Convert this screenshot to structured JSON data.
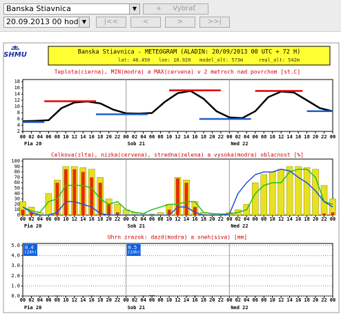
{
  "controls": {
    "location": "Banska Stiavnica",
    "select_button": "Vybrať",
    "datetime": "20.09.2013 00 hod",
    "nav": [
      "|<<",
      "<",
      ">",
      ">>|"
    ]
  },
  "header": {
    "logo": "SHMU",
    "title": "Banska Stiavnica - METEOGRAM (ALADIN: 20/09/2013 00 UTC + 72 H)",
    "lat": "lat: 48.450",
    "lon": "lon: 18.920",
    "model_alt": "model_alt: 573m",
    "real_alt": "real_alt: 542m"
  },
  "chart_data": [
    {
      "type": "line",
      "title": "Teplota(cierna), MIN(modra) a MAX(cervena) v 2 metroch nad povrchom [st.C]",
      "xlim": [
        0,
        72
      ],
      "ylim": [
        2,
        18
      ],
      "yticks": [
        2,
        4,
        6,
        8,
        10,
        12,
        14,
        16,
        18
      ],
      "grid": false,
      "xticks": [
        {
          "value": 0,
          "label": "00"
        },
        {
          "value": 2,
          "label": "02"
        },
        {
          "value": 4,
          "label": "04"
        },
        {
          "value": 6,
          "label": "06"
        },
        {
          "value": 8,
          "label": "08"
        },
        10,
        12,
        14,
        16,
        18,
        20,
        22,
        {
          "value": 24,
          "label": "00"
        },
        {
          "value": 26,
          "label": "02"
        },
        {
          "value": 28,
          "label": "04"
        },
        {
          "value": 30,
          "label": "06"
        },
        {
          "value": 32,
          "label": "08"
        },
        {
          "value": 34,
          "label": "10"
        },
        {
          "value": 36,
          "label": "12"
        },
        {
          "value": 38,
          "label": "14"
        },
        {
          "value": 40,
          "label": "16"
        },
        {
          "value": 42,
          "label": "18"
        },
        {
          "value": 44,
          "label": "20"
        },
        {
          "value": 46,
          "label": "22"
        },
        {
          "value": 48,
          "label": "00"
        },
        {
          "value": 50,
          "label": "02"
        },
        {
          "value": 52,
          "label": "04"
        },
        {
          "value": 54,
          "label": "06"
        },
        {
          "value": 56,
          "label": "08"
        },
        {
          "value": 58,
          "label": "10"
        },
        {
          "value": 60,
          "label": "12"
        },
        {
          "value": 62,
          "label": "14"
        },
        {
          "value": 64,
          "label": "16"
        },
        {
          "value": 66,
          "label": "18"
        },
        {
          "value": 68,
          "label": "20"
        },
        {
          "value": 70,
          "label": "22"
        },
        {
          "value": 72,
          "label": "00"
        }
      ],
      "day_labels": [
        {
          "value": 0,
          "label": "Pia 20"
        },
        {
          "value": 24,
          "label": "Sob 21"
        },
        {
          "value": 48,
          "label": "Ned 22"
        }
      ],
      "series": [
        {
          "type": "line",
          "color": "#000000",
          "x": [
            0,
            3,
            6,
            9,
            12,
            15,
            18,
            21,
            24,
            27,
            30,
            33,
            36,
            39,
            42,
            45,
            48,
            51,
            54,
            57,
            60,
            63,
            66,
            69,
            72
          ],
          "values": [
            5.3,
            5.4,
            5.6,
            9.5,
            11.3,
            11.6,
            11.0,
            9.0,
            7.8,
            7.7,
            7.9,
            11.5,
            14.3,
            15.0,
            12.5,
            8.5,
            6.5,
            6.3,
            8.5,
            13.0,
            14.8,
            14.5,
            12.0,
            9.5,
            8.5
          ]
        }
      ],
      "max_color": "#e00000",
      "max_segments": [
        {
          "start": 5,
          "end": 17,
          "value": 11.7
        },
        {
          "start": 34,
          "end": 46,
          "value": 15.2
        },
        {
          "start": 54,
          "end": 65,
          "value": 15.0
        }
      ],
      "min_color": "#1e5fd0",
      "min_segments": [
        {
          "start": 0,
          "end": 5,
          "value": 5.0
        },
        {
          "start": 17,
          "end": 29,
          "value": 7.5
        },
        {
          "start": 41,
          "end": 53,
          "value": 6.0
        },
        {
          "start": 66,
          "end": 72,
          "value": 8.5
        }
      ]
    },
    {
      "type": "bar",
      "title": "Celkova(zlta), nizka(cervena), stredna(zelena) a vysoka(modra) oblacnost [%]",
      "xlim": [
        0,
        72
      ],
      "ylim": [
        0,
        100
      ],
      "yticks": [
        0,
        10,
        20,
        30,
        40,
        50,
        60,
        70,
        80,
        90,
        100
      ],
      "grid": false,
      "xticks": [
        {
          "value": 0,
          "label": "00"
        },
        {
          "value": 2,
          "label": "02"
        },
        {
          "value": 4,
          "label": "04"
        },
        {
          "value": 6,
          "label": "06"
        },
        {
          "value": 8,
          "label": "08"
        },
        10,
        12,
        14,
        16,
        18,
        20,
        22,
        {
          "value": 24,
          "label": "00"
        },
        {
          "value": 26,
          "label": "02"
        },
        {
          "value": 28,
          "label": "04"
        },
        {
          "value": 30,
          "label": "06"
        },
        {
          "value": 32,
          "label": "08"
        },
        {
          "value": 34,
          "label": "10"
        },
        {
          "value": 36,
          "label": "12"
        },
        {
          "value": 38,
          "label": "14"
        },
        {
          "value": 40,
          "label": "16"
        },
        {
          "value": 42,
          "label": "18"
        },
        {
          "value": 44,
          "label": "20"
        },
        {
          "value": 46,
          "label": "22"
        },
        {
          "value": 48,
          "label": "00"
        },
        {
          "value": 50,
          "label": "02"
        },
        {
          "value": 52,
          "label": "04"
        },
        {
          "value": 54,
          "label": "06"
        },
        {
          "value": 56,
          "label": "08"
        },
        {
          "value": 58,
          "label": "10"
        },
        {
          "value": 60,
          "label": "12"
        },
        {
          "value": 62,
          "label": "14"
        },
        {
          "value": 64,
          "label": "16"
        },
        {
          "value": 66,
          "label": "18"
        },
        {
          "value": 68,
          "label": "20"
        },
        {
          "value": 70,
          "label": "22"
        },
        {
          "value": 72,
          "label": "00"
        }
      ],
      "day_labels": [
        {
          "value": 0,
          "label": "Pia 20"
        },
        {
          "value": 24,
          "label": "Sob 21"
        },
        {
          "value": 48,
          "label": "Ned 22"
        }
      ],
      "x": [
        0,
        2,
        4,
        6,
        8,
        10,
        12,
        14,
        16,
        18,
        20,
        22,
        24,
        26,
        28,
        30,
        32,
        34,
        36,
        38,
        40,
        42,
        44,
        46,
        48,
        50,
        52,
        54,
        56,
        58,
        60,
        62,
        64,
        66,
        68,
        70,
        72
      ],
      "series": [
        {
          "type": "bar",
          "color": "#e8e020",
          "values": [
            25,
            15,
            5,
            40,
            65,
            90,
            90,
            88,
            85,
            70,
            30,
            20,
            10,
            5,
            3,
            2,
            5,
            20,
            70,
            65,
            25,
            5,
            3,
            2,
            5,
            10,
            20,
            60,
            75,
            80,
            85,
            90,
            90,
            88,
            85,
            55,
            30
          ]
        },
        {
          "type": "bar",
          "color": "#e03000",
          "values": [
            10,
            5,
            0,
            0,
            60,
            85,
            85,
            80,
            70,
            60,
            20,
            5,
            0,
            0,
            0,
            0,
            0,
            10,
            68,
            60,
            15,
            0,
            0,
            0,
            0,
            0,
            0,
            0,
            0,
            0,
            0,
            0,
            0,
            0,
            0,
            3,
            5
          ]
        },
        {
          "type": "line",
          "color": "#20c020",
          "values": [
            15,
            8,
            5,
            25,
            30,
            55,
            55,
            55,
            50,
            30,
            20,
            25,
            10,
            5,
            3,
            10,
            15,
            20,
            20,
            25,
            25,
            5,
            3,
            2,
            2,
            5,
            10,
            40,
            55,
            60,
            60,
            80,
            85,
            85,
            70,
            25,
            20
          ]
        },
        {
          "type": "line",
          "color": "#2050e0",
          "values": [
            15,
            5,
            0,
            0,
            5,
            25,
            25,
            20,
            15,
            3,
            0,
            0,
            0,
            0,
            0,
            0,
            0,
            0,
            15,
            15,
            5,
            0,
            0,
            0,
            2,
            40,
            60,
            75,
            80,
            80,
            85,
            82,
            70,
            60,
            45,
            25,
            15
          ]
        }
      ]
    },
    {
      "type": "bar",
      "title": "Uhrn zrazok: dazd(modra) a sneh(siva) [mm]",
      "xlim": [
        0,
        72
      ],
      "ylim": [
        0,
        5
      ],
      "yticks": [
        {
          "value": 0,
          "label": "0.0"
        },
        {
          "value": 1,
          "label": "1.0"
        },
        {
          "value": 2,
          "label": "2.0"
        },
        {
          "value": 3,
          "label": "3.0"
        },
        {
          "value": 4,
          "label": "4.0"
        },
        {
          "value": 5,
          "label": "5.0"
        }
      ],
      "grid": true,
      "xticks": [
        {
          "value": 0,
          "label": "00"
        },
        {
          "value": 2,
          "label": "02"
        },
        {
          "value": 4,
          "label": "04"
        },
        {
          "value": 6,
          "label": "06"
        },
        {
          "value": 8,
          "label": "08"
        },
        10,
        12,
        14,
        16,
        18,
        20,
        22,
        {
          "value": 24,
          "label": "00"
        },
        {
          "value": 26,
          "label": "02"
        },
        {
          "value": 28,
          "label": "04"
        },
        {
          "value": 30,
          "label": "06"
        },
        {
          "value": 32,
          "label": "08"
        },
        {
          "value": 34,
          "label": "10"
        },
        {
          "value": 36,
          "label": "12"
        },
        {
          "value": 38,
          "label": "14"
        },
        {
          "value": 40,
          "label": "16"
        },
        {
          "value": 42,
          "label": "18"
        },
        {
          "value": 44,
          "label": "20"
        },
        {
          "value": 46,
          "label": "22"
        },
        {
          "value": 48,
          "label": "00"
        },
        {
          "value": 50,
          "label": "02"
        },
        {
          "value": 52,
          "label": "04"
        },
        {
          "value": 54,
          "label": "06"
        },
        {
          "value": 56,
          "label": "08"
        },
        {
          "value": 58,
          "label": "10"
        },
        {
          "value": 60,
          "label": "12"
        },
        {
          "value": 62,
          "label": "14"
        },
        {
          "value": 64,
          "label": "16"
        },
        {
          "value": 66,
          "label": "18"
        },
        {
          "value": 68,
          "label": "20"
        },
        {
          "value": 70,
          "label": "22"
        },
        {
          "value": 72,
          "label": "00"
        }
      ],
      "day_labels": [
        {
          "value": 0,
          "label": "Pia 20"
        },
        {
          "value": 24,
          "label": "Sob 21"
        },
        {
          "value": 48,
          "label": "Ned 22"
        }
      ],
      "x": [
        8,
        12,
        16,
        28,
        30,
        38,
        40
      ],
      "series": [
        {
          "type": "bar",
          "color": "#1040c0",
          "values": [
            0.05,
            0.03,
            0.05,
            0.05,
            0.08,
            0.05,
            0.05
          ]
        }
      ],
      "daily_totals": [
        0.4,
        0.5
      ],
      "daily_totals_unit": "(24h)",
      "daily_totals_color": "#1060e0"
    }
  ]
}
